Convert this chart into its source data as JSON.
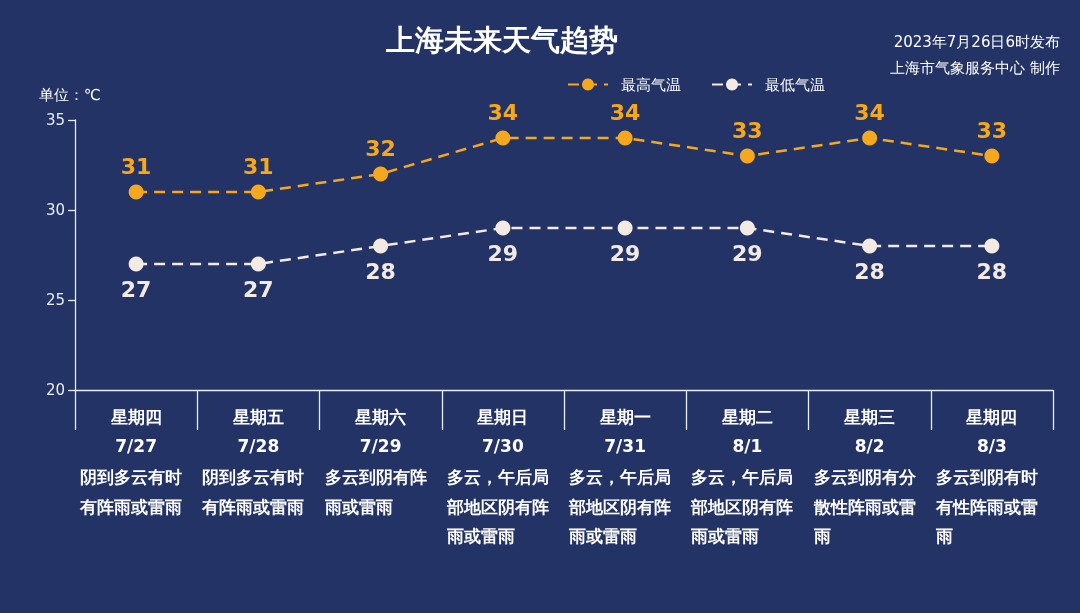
{
  "chart_data": {
    "type": "line",
    "title": "上海未来天气趋势",
    "ylabel": "单位：℃",
    "categories": [
      "星期四\n7/27",
      "星期五\n7/28",
      "星期六\n7/29",
      "星期日\n7/30",
      "星期一\n7/31",
      "星期二\n8/1",
      "星期三\n8/2",
      "星期四\n8/3"
    ],
    "series": [
      {
        "name": "最高气温",
        "color": "#f5a81c",
        "values": [
          31,
          31,
          32,
          34,
          34,
          33,
          34,
          33
        ]
      },
      {
        "name": "最低气温",
        "color": "#f3ebe3",
        "values": [
          27,
          27,
          28,
          29,
          29,
          29,
          28,
          28
        ]
      }
    ],
    "ylim": [
      20,
      35
    ],
    "yticks": [
      20,
      25,
      30,
      35
    ],
    "legend": "top right",
    "marker": "circle",
    "line_style": "dashed",
    "data_labels": true,
    "annotations": [
      "2023年7月26日6时发布",
      "上海市气象服务中心 制作",
      "阴到多云有时有阵雨或雷雨",
      "阴到多云有时有阵雨或雷雨",
      "多云到阴有阵雨或雷雨",
      "多云，午后局部地区阴有阵雨或雷雨",
      "多云，午后局部地区阴有阵雨或雷雨",
      "多云，午后局部地区阴有阵雨或雷雨",
      "多云到阴有分散性阵雨或雷雨",
      "多云到阴有时有性阵雨或雷雨"
    ]
  }
}
